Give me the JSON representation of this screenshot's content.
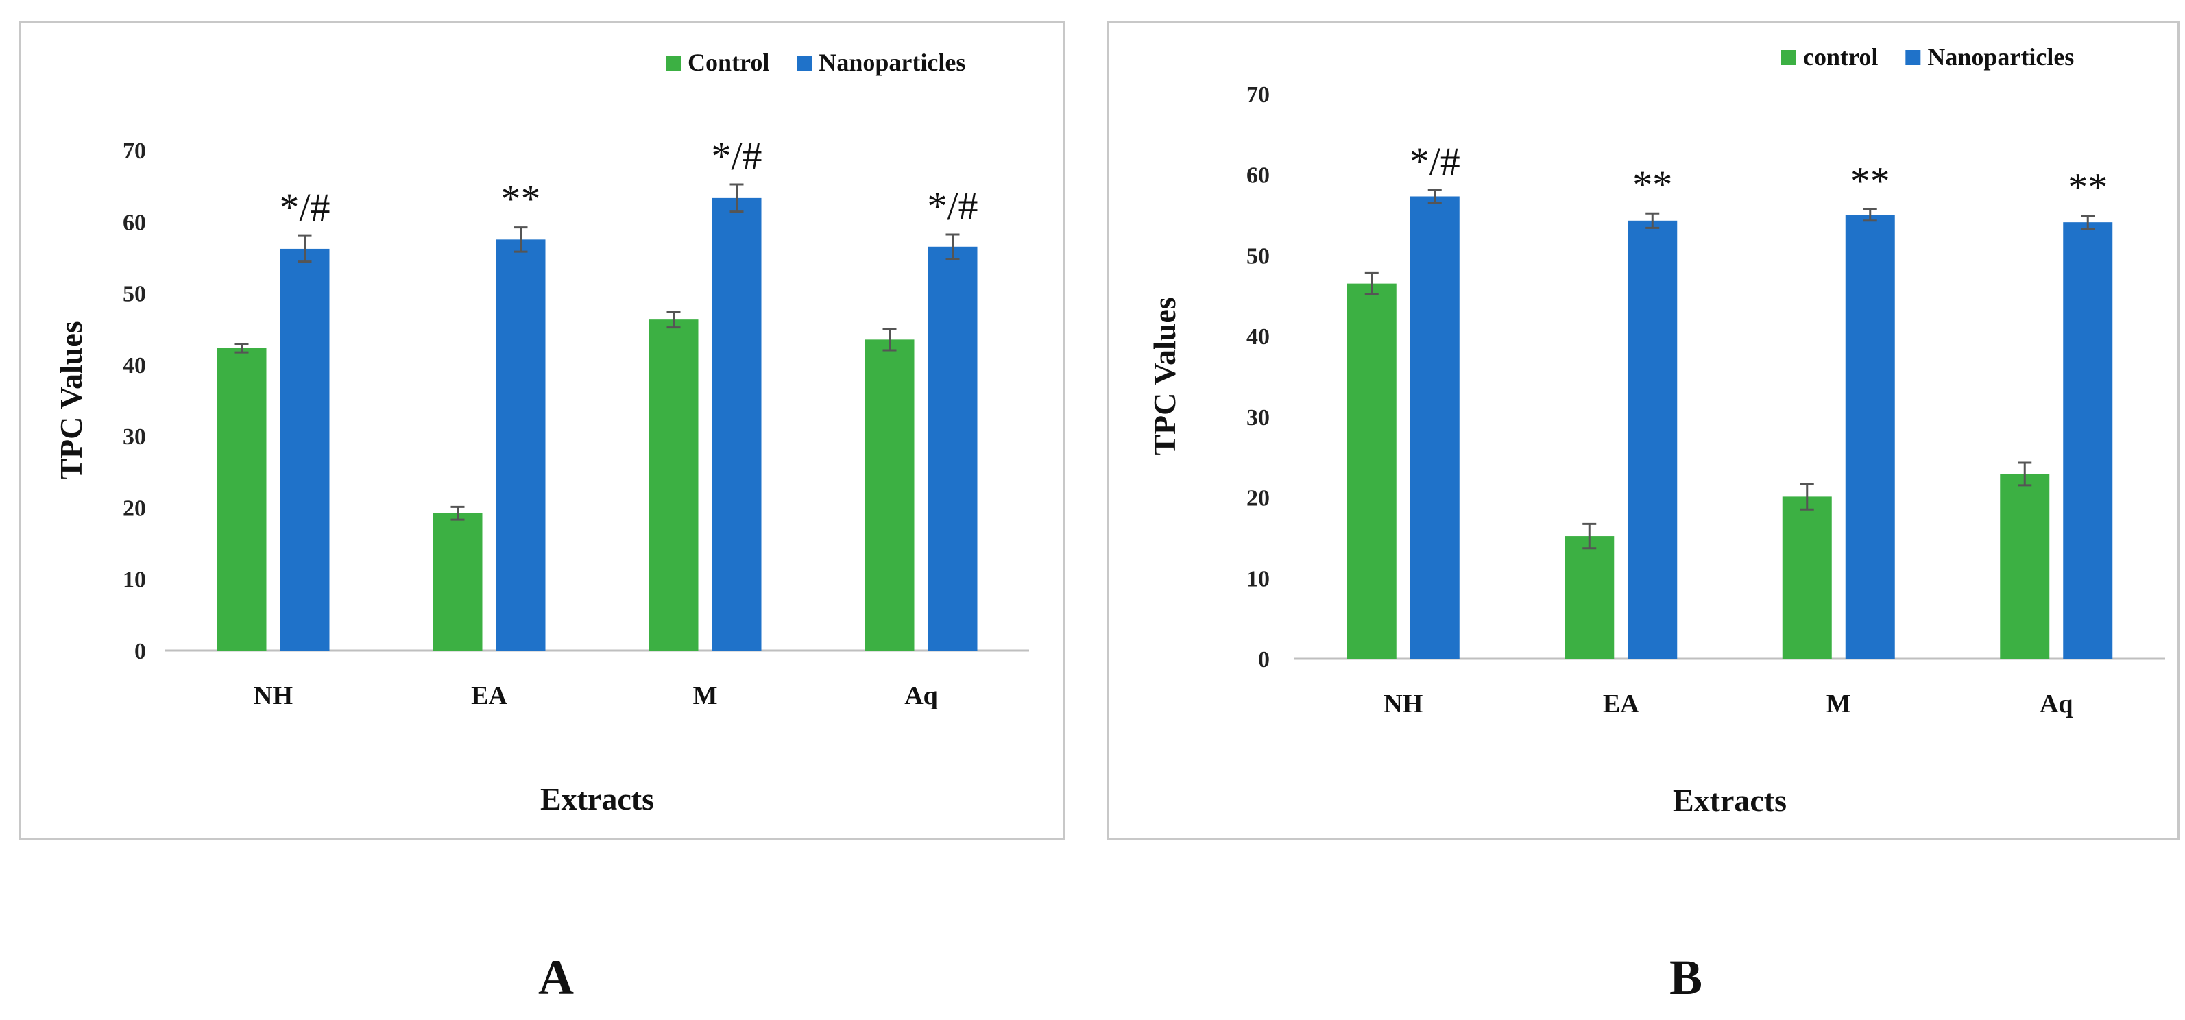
{
  "panels": [
    {
      "panel_label": "A",
      "legend": [
        {
          "label": "Control",
          "color": "#3cb043"
        },
        {
          "label": "Nanoparticles",
          "color": "#1f72c9"
        }
      ]
    },
    {
      "panel_label": "B",
      "legend": [
        {
          "label": "control",
          "color": "#3cb043"
        },
        {
          "label": "Nanoparticles",
          "color": "#1f72c9"
        }
      ]
    }
  ],
  "chart_data": [
    {
      "type": "bar",
      "title": "",
      "xlabel": "Extracts",
      "ylabel": "TPC Values",
      "ylim": [
        0,
        70
      ],
      "yticks": [
        0,
        10,
        20,
        30,
        40,
        50,
        60,
        70
      ],
      "grid": false,
      "legend_position": "top-right",
      "categories": [
        "NH",
        "EA",
        "M",
        "Aq"
      ],
      "series": [
        {
          "name": "Control",
          "color": "#3cb043",
          "values": [
            42.3,
            19.2,
            46.3,
            43.5
          ],
          "errors": [
            0.6,
            0.9,
            1.1,
            1.5
          ]
        },
        {
          "name": "Nanoparticles",
          "color": "#1f72c9",
          "values": [
            56.2,
            57.5,
            63.3,
            56.5
          ],
          "errors": [
            1.8,
            1.7,
            1.9,
            1.7
          ]
        }
      ],
      "annotations": [
        "*/#",
        "**",
        "*/#",
        "*/#"
      ]
    },
    {
      "type": "bar",
      "title": "",
      "xlabel": "Extracts",
      "ylabel": "TPC Values",
      "ylim": [
        0,
        70
      ],
      "yticks": [
        0,
        10,
        20,
        30,
        40,
        50,
        60,
        70
      ],
      "grid": false,
      "legend_position": "top-right",
      "categories": [
        "NH",
        "EA",
        "M",
        "Aq"
      ],
      "series": [
        {
          "name": "control",
          "color": "#3cb043",
          "values": [
            46.5,
            15.2,
            20.1,
            22.9
          ],
          "errors": [
            1.3,
            1.5,
            1.6,
            1.4
          ]
        },
        {
          "name": "Nanoparticles",
          "color": "#1f72c9",
          "values": [
            57.3,
            54.3,
            55.0,
            54.1
          ],
          "errors": [
            0.8,
            0.9,
            0.7,
            0.8
          ]
        }
      ],
      "annotations": [
        "*/#",
        "**",
        "**",
        "**"
      ]
    }
  ]
}
